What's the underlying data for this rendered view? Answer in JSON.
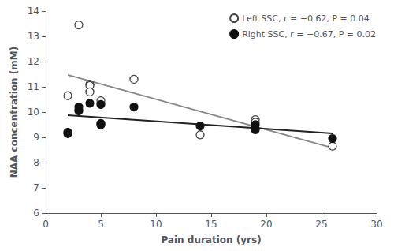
{
  "chart_data": {
    "type": "scatter",
    "xlabel": "Pain duration (yrs)",
    "ylabel": "NAA concentration (mM)",
    "series": [
      {
        "name": "Left SSC, r = −0.62, P = 0.04",
        "color": "#444444",
        "marker": "hollow",
        "x": [
          2,
          3,
          4,
          4,
          4,
          5,
          8,
          14,
          19,
          19,
          26
        ],
        "values": [
          10.65,
          13.45,
          11.1,
          11.05,
          10.8,
          10.45,
          11.3,
          9.1,
          9.7,
          9.6,
          8.65
        ],
        "fit": {
          "x": [
            2,
            26
          ],
          "values": [
            11.473431,
            8.582899
          ],
          "color": "#888888"
        }
      },
      {
        "name": "Right SSC, r = −0.67, P = 0.02",
        "color": "#111111",
        "marker": "filled",
        "x": [
          2,
          2,
          3,
          3,
          4,
          5,
          5,
          5,
          8,
          14,
          19,
          19,
          26
        ],
        "values": [
          9.2,
          9.15,
          10.2,
          10.05,
          10.35,
          9.55,
          9.5,
          10.3,
          10.2,
          9.45,
          9.5,
          9.3,
          8.95
        ],
        "fit": {
          "x": [
            2,
            26
          ],
          "values": [
            9.873087,
            9.158448
          ],
          "color": "#222222"
        }
      }
    ],
    "xlim": [
      0,
      30
    ],
    "ylim": [
      6,
      14
    ],
    "xticks": [
      0,
      5,
      10,
      15,
      20,
      25,
      30
    ],
    "yticks": [
      6,
      7,
      8,
      9,
      10,
      11,
      12,
      13,
      14
    ],
    "grid": false,
    "legend": "upper right"
  }
}
